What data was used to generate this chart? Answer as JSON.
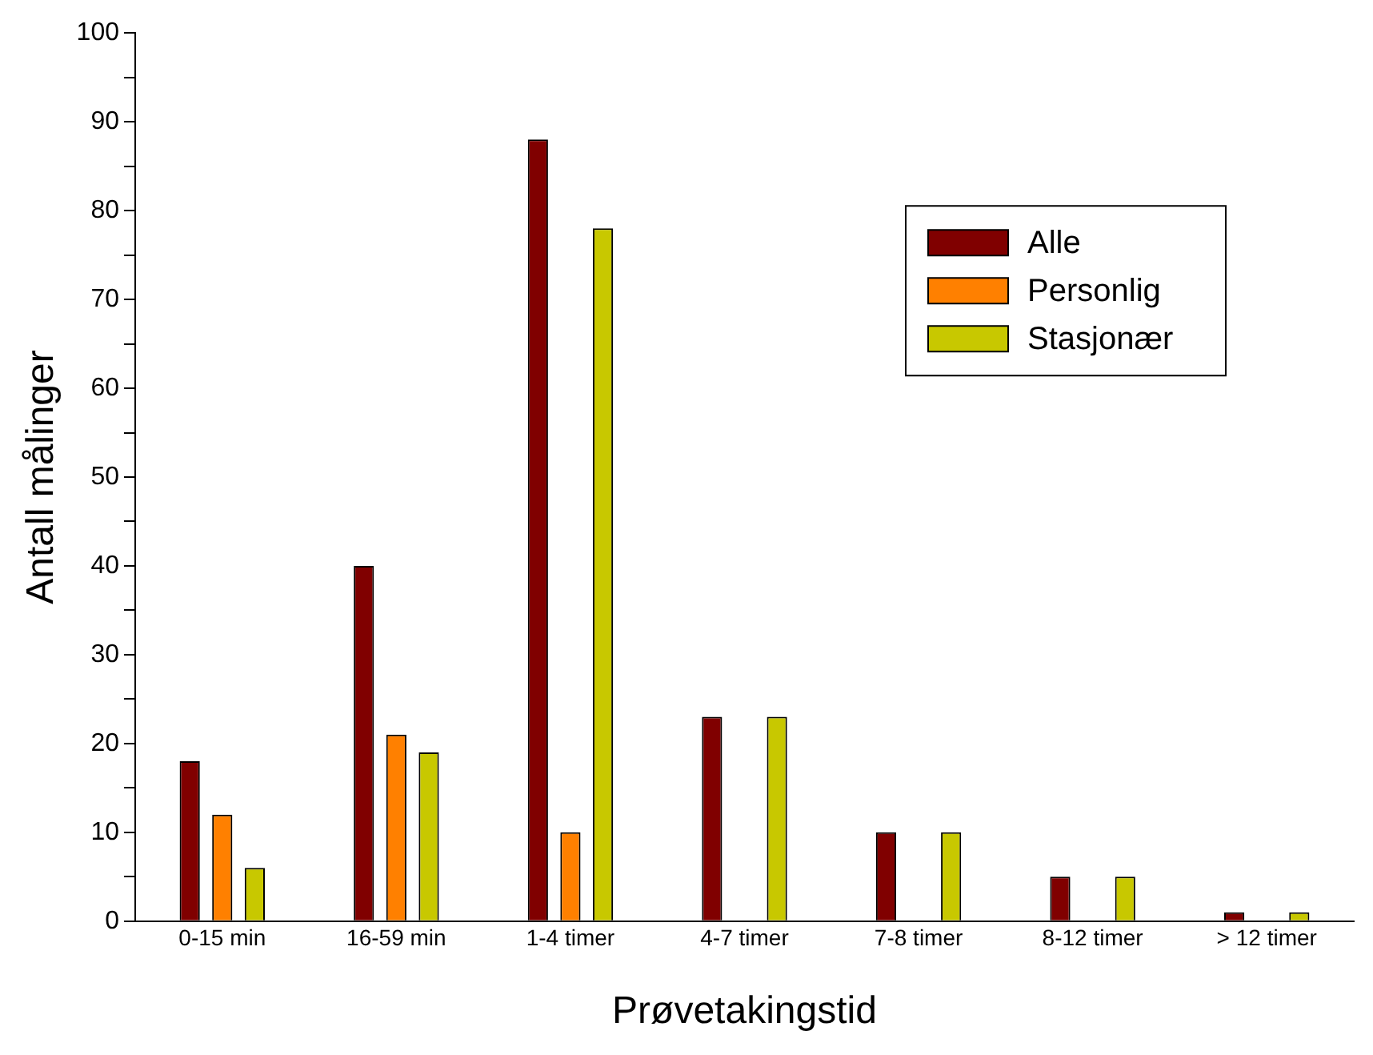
{
  "chart_data": {
    "type": "bar",
    "xlabel": "Prøvetakingstid",
    "ylabel": "Antall målinger",
    "categories": [
      "0-15 min",
      "16-59 min",
      "1-4 timer",
      "4-7 timer",
      "7-8 timer",
      "8-12 timer",
      "> 12 timer"
    ],
    "series": [
      {
        "name": "Alle",
        "color": "#800000",
        "values": [
          18,
          40,
          88,
          23,
          10,
          5,
          1
        ]
      },
      {
        "name": "Personlig",
        "color": "#ff8000",
        "values": [
          12,
          21,
          10,
          0,
          0,
          0,
          0
        ]
      },
      {
        "name": "Stasjonær",
        "color": "#c8c800",
        "values": [
          6,
          19,
          78,
          23,
          10,
          5,
          1
        ]
      }
    ],
    "ylim": [
      0,
      100
    ],
    "yticks": [
      0,
      {
        "value": 5,
        "label": null
      },
      10,
      {
        "value": 15,
        "label": null
      },
      20,
      {
        "value": 25,
        "label": null
      },
      30,
      {
        "value": 35,
        "label": null
      },
      40,
      {
        "value": 45,
        "label": null
      },
      50,
      {
        "value": 55,
        "label": null
      },
      60,
      {
        "value": 65,
        "label": null
      },
      70,
      {
        "value": 75,
        "label": null
      },
      80,
      {
        "value": 85,
        "label": null
      },
      90,
      {
        "value": 95,
        "label": null
      },
      100
    ],
    "grid": false,
    "legend": "top right"
  }
}
